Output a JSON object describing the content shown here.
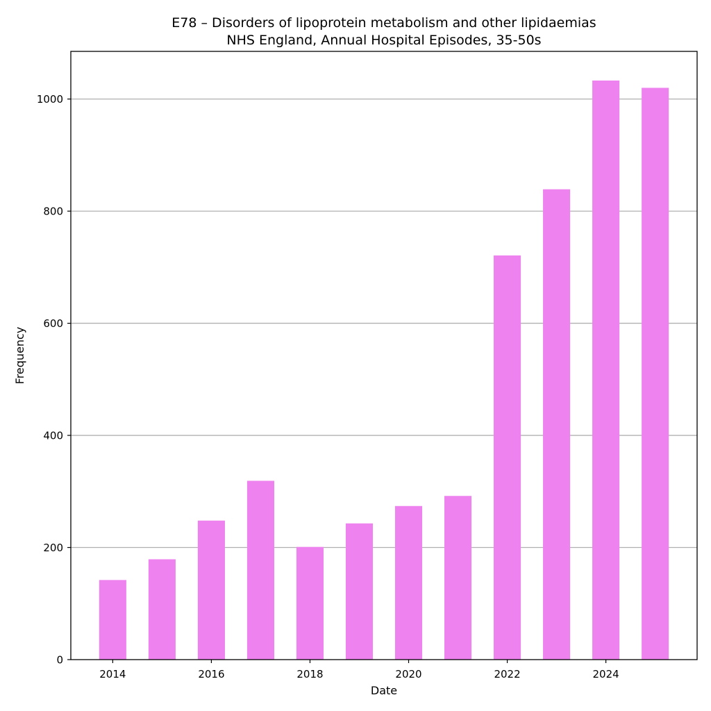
{
  "chart_data": {
    "type": "bar",
    "title": "E78 – Disorders of lipoprotein metabolism and other lipidaemias",
    "subtitle": "NHS England, Annual Hospital Episodes, 35-50s",
    "xlabel": "Date",
    "ylabel": "Frequency",
    "categories": [
      2014,
      2015,
      2016,
      2017,
      2018,
      2019,
      2020,
      2021,
      2022,
      2023,
      2024,
      2025
    ],
    "values": [
      142,
      179,
      248,
      319,
      201,
      243,
      274,
      292,
      721,
      839,
      1033,
      1020
    ],
    "xlim": [
      2013.15,
      2025.85
    ],
    "ylim": [
      0,
      1085
    ],
    "x_ticks": [
      "2014",
      "2016",
      "2018",
      "2020",
      "2022",
      "2024"
    ],
    "y_ticks": [
      "0",
      "200",
      "400",
      "600",
      "800",
      "1000"
    ],
    "grid": "horizontal",
    "bar_color": "#ee82ee",
    "grid_color": "#b0b0b0"
  }
}
